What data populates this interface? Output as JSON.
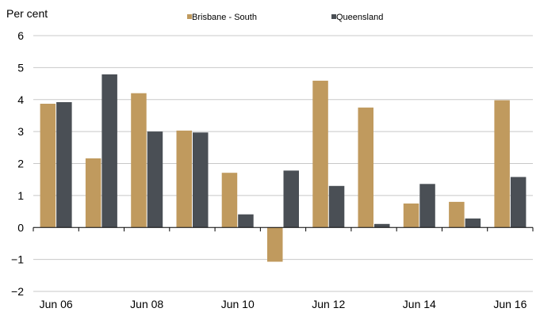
{
  "chart_data": {
    "type": "bar",
    "ylabel": "Per cent",
    "ylim": [
      -2,
      6
    ],
    "y_ticks": [
      "−2",
      "−1",
      "0",
      "1",
      "2",
      "3",
      "4",
      "5",
      "6"
    ],
    "y_tick_values": [
      -2,
      -1,
      0,
      1,
      2,
      3,
      4,
      5,
      6
    ],
    "grid": true,
    "legend_position": "top-center",
    "categories": [
      "Jun 06",
      "Jun 07",
      "Jun 08",
      "Jun 09",
      "Jun 10",
      "Jun 11",
      "Jun 12",
      "Jun 13",
      "Jun 14",
      "Jun 15",
      "Jun 16"
    ],
    "x_tick_labels": [
      "Jun 06",
      "",
      "Jun 08",
      "",
      "Jun 10",
      "",
      "Jun 12",
      "",
      "Jun 14",
      "",
      "Jun 16"
    ],
    "series": [
      {
        "name": "Brisbane - South",
        "color": "#c09a5e",
        "values": [
          3.87,
          2.16,
          4.2,
          3.03,
          1.71,
          -1.07,
          4.59,
          3.75,
          0.75,
          0.8,
          3.98
        ]
      },
      {
        "name": "Queensland",
        "color": "#4a4f55",
        "values": [
          3.92,
          4.79,
          3.0,
          2.97,
          0.41,
          1.78,
          1.3,
          0.11,
          1.36,
          0.28,
          1.58
        ]
      }
    ]
  }
}
